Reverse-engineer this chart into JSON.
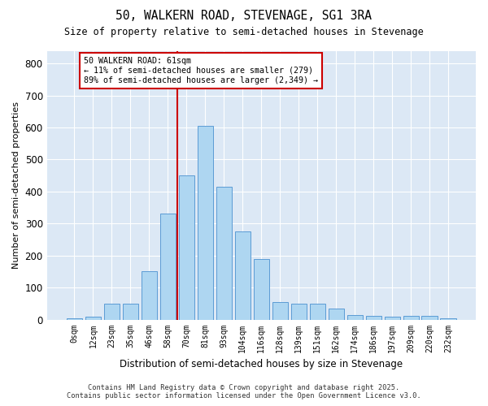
{
  "title": "50, WALKERN ROAD, STEVENAGE, SG1 3RA",
  "subtitle": "Size of property relative to semi-detached houses in Stevenage",
  "xlabel": "Distribution of semi-detached houses by size in Stevenage",
  "ylabel": "Number of semi-detached properties",
  "bar_labels": [
    "0sqm",
    "12sqm",
    "23sqm",
    "35sqm",
    "46sqm",
    "58sqm",
    "70sqm",
    "81sqm",
    "93sqm",
    "104sqm",
    "116sqm",
    "128sqm",
    "139sqm",
    "151sqm",
    "162sqm",
    "174sqm",
    "186sqm",
    "197sqm",
    "209sqm",
    "220sqm",
    "232sqm"
  ],
  "bar_values": [
    5,
    8,
    50,
    50,
    150,
    330,
    450,
    605,
    415,
    275,
    190,
    55,
    50,
    50,
    35,
    15,
    12,
    10,
    12,
    12,
    5
  ],
  "bar_color": "#aed6f1",
  "bar_edge_color": "#5b9bd5",
  "vline_index": 5,
  "vline_color": "#cc0000",
  "annotation_title": "50 WALKERN ROAD: 61sqm",
  "annotation_line2": "← 11% of semi-detached houses are smaller (279)",
  "annotation_line3": "89% of semi-detached houses are larger (2,349) →",
  "annotation_box_color": "white",
  "annotation_box_edge": "#cc0000",
  "ylim": [
    0,
    840
  ],
  "yticks": [
    0,
    100,
    200,
    300,
    400,
    500,
    600,
    700,
    800
  ],
  "bg_color": "#dce8f5",
  "footer1": "Contains HM Land Registry data © Crown copyright and database right 2025.",
  "footer2": "Contains public sector information licensed under the Open Government Licence v3.0."
}
